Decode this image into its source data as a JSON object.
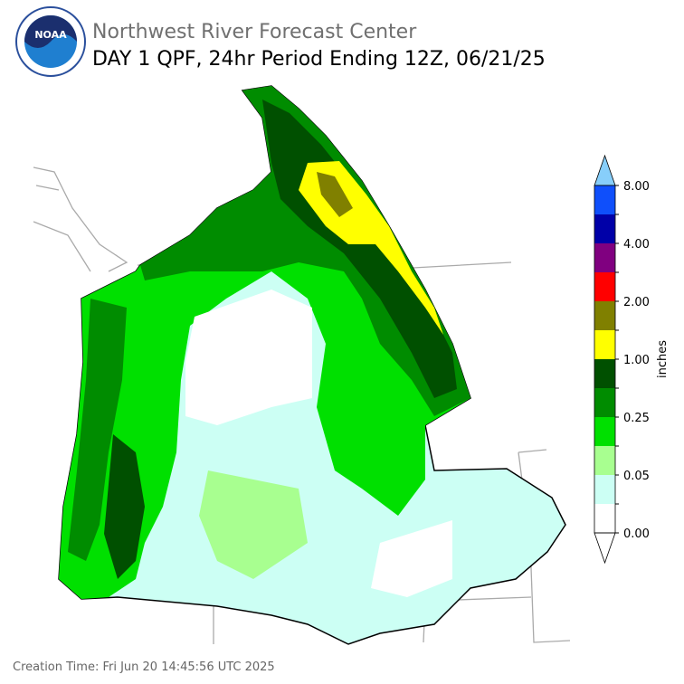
{
  "header": {
    "title": "Northwest River Forecast Center",
    "subtitle": "DAY 1 QPF, 24hr Period Ending 12Z, 06/21/25"
  },
  "colorbar": {
    "label": "inches",
    "ticks": [
      "8.00",
      "4.00",
      "2.00",
      "1.00",
      "0.25",
      "0.05",
      "0.00"
    ],
    "over_color": "#87cefa",
    "colors": [
      "#0f4ffb",
      "#0000a8",
      "#800080",
      "#ff0000",
      "#808000",
      "#ffff00",
      "#005000",
      "#008c00",
      "#00e000",
      "#a8ff90",
      "#ccfff4",
      "#ffffff"
    ]
  },
  "footer": {
    "creation_time": "Creation Time: Fri Jun 20 14:45:56 UTC 2025"
  }
}
